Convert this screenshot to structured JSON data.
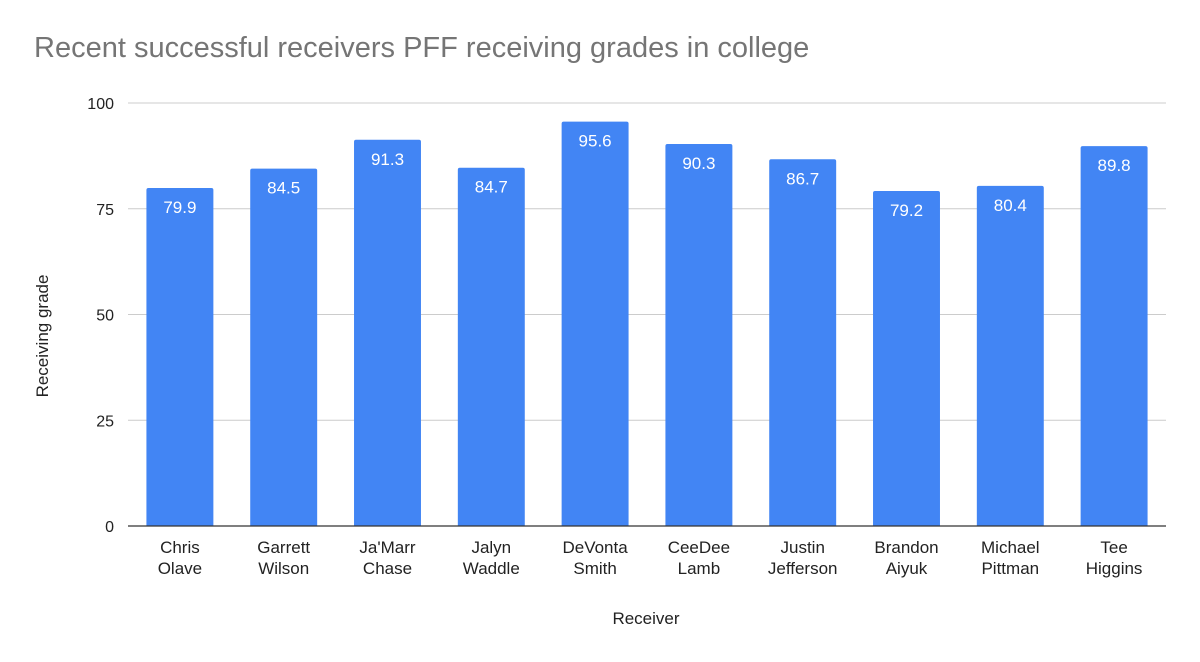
{
  "chart_data": {
    "type": "bar",
    "title": "Recent successful receivers PFF receiving grades in college",
    "xlabel": "Receiver",
    "ylabel": "Receiving grade",
    "ylim": [
      0,
      100
    ],
    "yticks": [
      0,
      25,
      50,
      75,
      100
    ],
    "grid": true,
    "legend": "none",
    "bar_color": "#4285f4",
    "categories": [
      [
        "Chris",
        "Olave"
      ],
      [
        "Garrett",
        "Wilson"
      ],
      [
        "Ja'Marr",
        "Chase"
      ],
      [
        "Jalyn",
        "Waddle"
      ],
      [
        "DeVonta",
        "Smith"
      ],
      [
        "CeeDee",
        "Lamb"
      ],
      [
        "Justin",
        "Jefferson"
      ],
      [
        "Brandon",
        "Aiyuk"
      ],
      [
        "Michael",
        "Pittman"
      ],
      [
        "Tee",
        "Higgins"
      ]
    ],
    "values": [
      79.9,
      84.5,
      91.3,
      84.7,
      95.6,
      90.3,
      86.7,
      79.2,
      80.4,
      89.8
    ]
  }
}
